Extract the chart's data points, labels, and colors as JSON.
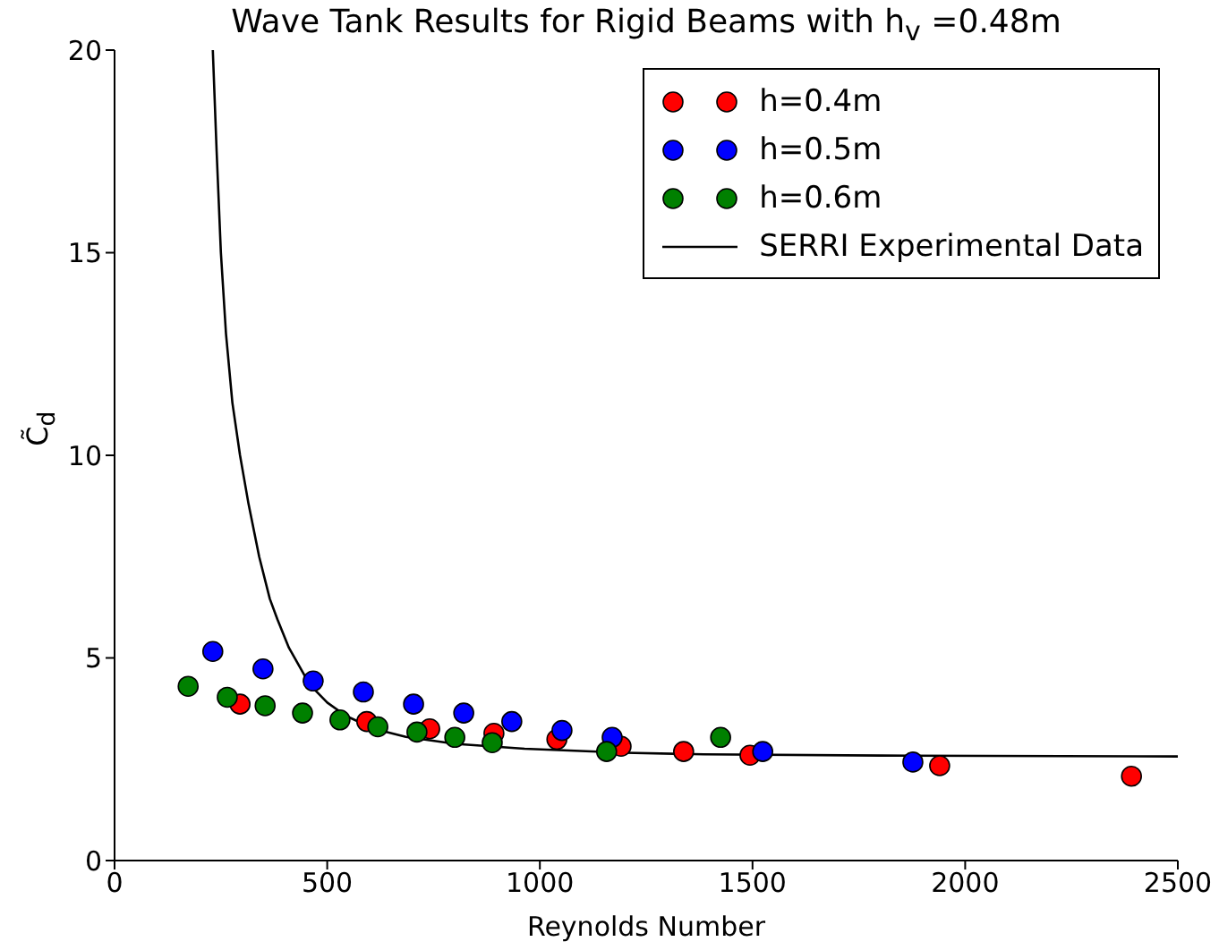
{
  "chart_data": {
    "type": "scatter",
    "title": "Wave Tank Results for Rigid Beams with h$_{v}$ =0.48m",
    "xlabel": "Reynolds Number",
    "ylabel": "C̃$_{d}$",
    "xlim": [
      0,
      2500
    ],
    "xticks": [
      0,
      500,
      1000,
      1500,
      2000,
      2500
    ],
    "ylim": [
      0,
      20
    ],
    "yticks": [
      0,
      5,
      10,
      15,
      20
    ],
    "grid": false,
    "legend": "top right",
    "series": [
      {
        "name": "h=0.4m",
        "color": "#ff0000",
        "marker": "circle",
        "x": [
          295,
          593,
          741,
          892,
          1040,
          1191,
          1338,
          1494,
          1940,
          2391
        ],
        "values": [
          3.86,
          3.43,
          3.25,
          3.14,
          2.99,
          2.82,
          2.69,
          2.6,
          2.34,
          2.08
        ]
      },
      {
        "name": "h=0.5m",
        "color": "#0000ff",
        "marker": "circle",
        "x": [
          231,
          349,
          467,
          585,
          703,
          821,
          934,
          1052,
          1170,
          1524,
          1877
        ],
        "values": [
          5.16,
          4.73,
          4.43,
          4.16,
          3.86,
          3.64,
          3.43,
          3.21,
          3.04,
          2.69,
          2.43
        ]
      },
      {
        "name": "h=0.6m",
        "color": "#008000",
        "marker": "circle",
        "x": [
          173,
          265,
          354,
          442,
          530,
          619,
          711,
          800,
          888,
          1157,
          1425
        ],
        "values": [
          4.3,
          4.03,
          3.82,
          3.64,
          3.47,
          3.3,
          3.17,
          3.04,
          2.91,
          2.69,
          3.04
        ]
      },
      {
        "name": "SERRI Experimental Data",
        "type": "line",
        "color": "#000000",
        "line_style": "solid",
        "x": [
          231,
          240,
          250,
          262,
          277,
          295,
          315,
          340,
          365,
          383,
          410,
          459,
          500,
          544,
          610,
          685,
          800,
          964,
          1200,
          1385,
          1800,
          2500
        ],
        "values": [
          20,
          17.5,
          15,
          13,
          11.3,
          10,
          8.8,
          7.5,
          6.46,
          5.95,
          5.25,
          4.34,
          3.9,
          3.57,
          3.25,
          3.05,
          2.88,
          2.76,
          2.66,
          2.62,
          2.59,
          2.57
        ]
      }
    ]
  }
}
